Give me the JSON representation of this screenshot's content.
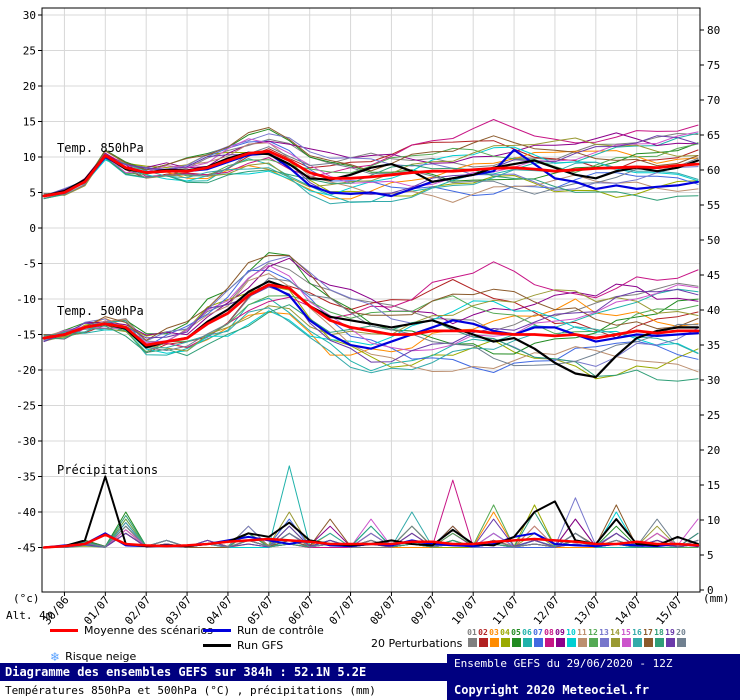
{
  "chart_data": {
    "type": "line",
    "title": "Diagramme des ensembles GEFS sur 384h : 52.1N 5.2E",
    "subtitle": "Températures 850hPa et 500hPa (°C) , précipitations (mm)",
    "x_step_hours": 12,
    "x_max_hours": 384,
    "x_dates": [
      "30/06",
      "01/07",
      "02/07",
      "03/07",
      "04/07",
      "05/07",
      "06/07",
      "07/07",
      "08/07",
      "09/07",
      "10/07",
      "11/07",
      "12/07",
      "13/07",
      "14/07",
      "15/07"
    ],
    "left_axis": {
      "unit": "(°c)",
      "alt_label": "Alt. 4m",
      "ticks": [
        30,
        25,
        20,
        15,
        10,
        5,
        0,
        -5,
        -10,
        -15,
        -20,
        -25,
        -30,
        -35,
        -40,
        -45
      ]
    },
    "right_axis": {
      "unit": "(mm)",
      "ticks": [
        80,
        75,
        70,
        65,
        60,
        55,
        50,
        45,
        40,
        35,
        30,
        25,
        20,
        15,
        10,
        5,
        0
      ]
    },
    "colors": {
      "mean": "#ff0000",
      "control": "#0000dd",
      "gfs": "#000000",
      "grid": "#d8d8d8",
      "frame": "#000000"
    },
    "panels": {
      "t850": {
        "label": "Temp. 850hPa",
        "mean": [
          4.5,
          5.0,
          6.5,
          10.2,
          8.5,
          7.8,
          8.0,
          8.0,
          8.5,
          9.5,
          10.5,
          10.8,
          9.5,
          7.8,
          7.0,
          7.0,
          7.2,
          7.5,
          7.8,
          8.0,
          8.0,
          8.2,
          8.4,
          8.5,
          8.3,
          8.0,
          8.2,
          8.4,
          8.5,
          8.6,
          8.5,
          8.8,
          9.0
        ],
        "control": [
          4.5,
          5.0,
          6.5,
          10.0,
          8.5,
          7.8,
          8.0,
          8.0,
          8.3,
          9.3,
          10.3,
          10.5,
          8.5,
          6.0,
          5.0,
          4.8,
          5.0,
          4.5,
          5.5,
          6.5,
          7.0,
          7.5,
          8.0,
          11.0,
          9.0,
          7.0,
          6.5,
          5.5,
          6.0,
          5.5,
          5.8,
          6.0,
          6.5
        ],
        "gfs": [
          4.5,
          5.2,
          6.8,
          10.2,
          8.3,
          7.8,
          8.2,
          8.1,
          8.6,
          9.8,
          10.6,
          10.4,
          9.0,
          7.0,
          6.8,
          7.5,
          8.5,
          9.0,
          8.0,
          6.5,
          7.0,
          7.5,
          8.5,
          9.0,
          9.5,
          8.5,
          7.5,
          7.0,
          8.0,
          8.5,
          8.0,
          8.5,
          9.5
        ]
      },
      "t500": {
        "label": "Temp. 500hPa",
        "mean": [
          -15.5,
          -15.0,
          -14.0,
          -13.5,
          -14.0,
          -16.5,
          -16.0,
          -15.5,
          -13.5,
          -12.0,
          -9.5,
          -8.0,
          -8.5,
          -11.0,
          -13.0,
          -14.0,
          -14.5,
          -15.0,
          -15.0,
          -14.5,
          -14.5,
          -14.5,
          -14.8,
          -15.0,
          -15.0,
          -15.2,
          -15.0,
          -15.5,
          -15.0,
          -14.5,
          -14.8,
          -14.5,
          -14.5
        ],
        "control": [
          -15.5,
          -15.0,
          -14.0,
          -13.5,
          -14.0,
          -16.5,
          -16.0,
          -15.5,
          -13.5,
          -12.0,
          -9.5,
          -8.0,
          -9.5,
          -13.0,
          -15.0,
          -16.5,
          -17.0,
          -16.0,
          -15.0,
          -14.0,
          -13.0,
          -13.5,
          -14.5,
          -15.0,
          -14.0,
          -14.0,
          -15.0,
          -16.0,
          -15.5,
          -15.0,
          -15.2,
          -15.0,
          -14.8
        ],
        "gfs": [
          -15.5,
          -15.0,
          -14.0,
          -13.5,
          -14.2,
          -16.8,
          -16.0,
          -15.5,
          -13.2,
          -11.5,
          -9.0,
          -7.5,
          -8.5,
          -11.0,
          -12.5,
          -13.0,
          -13.5,
          -14.0,
          -13.5,
          -13.0,
          -14.0,
          -15.0,
          -16.0,
          -15.5,
          -17.0,
          -19.0,
          -20.5,
          -21.0,
          -18.0,
          -15.5,
          -14.5,
          -14.0,
          -14.0
        ]
      },
      "precip": {
        "label": "Précipitations",
        "mean": [
          0,
          0.2,
          0.5,
          1.8,
          0.5,
          0.3,
          0.2,
          0.3,
          0.5,
          0.8,
          1.0,
          1.2,
          1.0,
          0.8,
          0.5,
          0.5,
          0.5,
          0.5,
          0.8,
          0.8,
          0.5,
          0.5,
          0.8,
          1.0,
          1.2,
          1.0,
          0.8,
          0.5,
          0.5,
          0.8,
          0.5,
          0.5,
          0.3
        ],
        "control": [
          0,
          0.3,
          0.5,
          2.0,
          0.3,
          0.2,
          0.2,
          0.2,
          0.5,
          1.0,
          1.5,
          1.0,
          0.5,
          1.0,
          0.3,
          0.2,
          0.5,
          0.3,
          1.0,
          0.5,
          0.3,
          0.2,
          0.5,
          1.5,
          2.0,
          0.5,
          0.3,
          0.2,
          0.5,
          0.3,
          0.2,
          0.5,
          0.2
        ],
        "gfs": [
          0,
          0.2,
          1.0,
          10.0,
          0.5,
          0.2,
          0.3,
          0.2,
          0.5,
          0.8,
          2.0,
          1.5,
          3.5,
          1.0,
          0.5,
          0.3,
          0.5,
          1.0,
          0.5,
          0.3,
          2.5,
          0.5,
          0.3,
          1.5,
          5.0,
          6.5,
          1.0,
          0.5,
          4.0,
          0.5,
          0.3,
          1.5,
          0.5
        ]
      }
    },
    "members": {
      "count": 20,
      "wiggle850": 0.4,
      "wiggle500": 0.5,
      "scale500": 1.5,
      "colors": [
        "#808080",
        "#b22222",
        "#ff8c00",
        "#9aa900",
        "#228b22",
        "#20b2aa",
        "#4169e1",
        "#c71585",
        "#8b008b",
        "#00ced1",
        "#bc8f6f",
        "#55aa55",
        "#7777cc",
        "#999933",
        "#cc55cc",
        "#33aaaa",
        "#8b5a2b",
        "#2f9e77",
        "#6a3aaa",
        "#708090"
      ],
      "offsets850_daily": [
        [
          0,
          0.2,
          0.5,
          0.3,
          1.0,
          1.5,
          2.0,
          2.5,
          3.0,
          2.0,
          1.0,
          0.5,
          1.5,
          2.5,
          3.5,
          4.0,
          4.5
        ],
        [
          0,
          -0.2,
          -0.5,
          -0.3,
          -1.0,
          -0.5,
          0.5,
          1.5,
          2.5,
          3.5,
          4.5,
          3.5,
          2.0,
          1.0,
          0.0,
          1.0,
          2.0
        ],
        [
          0,
          0.1,
          0.3,
          -0.5,
          -1.2,
          -2.0,
          -2.5,
          -3.0,
          -2.0,
          -1.0,
          0.0,
          1.0,
          2.0,
          3.0,
          2.0,
          1.0,
          0.5
        ],
        [
          0,
          -0.1,
          0.4,
          0.8,
          1.5,
          0.5,
          -0.5,
          -1.5,
          -2.5,
          -3.0,
          -2.0,
          -1.0,
          -2.0,
          -3.0,
          -4.0,
          -3.0,
          -2.0
        ],
        [
          0,
          0.3,
          0.6,
          1.0,
          2.0,
          2.5,
          3.0,
          2.0,
          1.0,
          0.0,
          -1.0,
          -2.0,
          -1.0,
          0.0,
          1.0,
          2.0,
          3.0
        ],
        [
          0,
          -0.3,
          -0.6,
          -1.0,
          -1.5,
          -1.0,
          -2.0,
          -2.5,
          -3.5,
          -2.5,
          -1.5,
          -0.5,
          0.5,
          1.5,
          2.5,
          3.5,
          4.0
        ],
        [
          0,
          0.2,
          -0.2,
          0.5,
          1.2,
          2.0,
          1.0,
          0.0,
          -1.0,
          -2.0,
          -3.0,
          -3.5,
          -2.5,
          -1.5,
          -0.5,
          -1.5,
          -2.5
        ],
        [
          0,
          -0.2,
          0.2,
          -0.5,
          -1.0,
          -1.5,
          -1.0,
          0.5,
          2.0,
          3.5,
          5.0,
          6.5,
          5.0,
          3.5,
          4.5,
          5.0,
          5.5
        ],
        [
          0,
          0.1,
          0.5,
          0.8,
          0.5,
          1.0,
          2.5,
          3.5,
          3.0,
          2.0,
          1.0,
          2.0,
          3.0,
          4.0,
          4.5,
          3.5,
          2.5
        ],
        [
          0,
          -0.1,
          -0.4,
          -0.8,
          -1.5,
          -2.5,
          -3.0,
          -2.0,
          -1.0,
          0.5,
          2.0,
          3.0,
          2.0,
          1.0,
          0.0,
          -1.0,
          -2.0
        ],
        [
          0,
          0.2,
          0.4,
          0.2,
          0.8,
          1.2,
          0.5,
          -0.8,
          -2.0,
          -3.0,
          -4.0,
          -3.0,
          -2.0,
          -1.0,
          -2.0,
          -3.0,
          -3.5
        ],
        [
          0,
          -0.2,
          -0.4,
          -0.2,
          -0.8,
          -1.2,
          -0.5,
          0.8,
          1.5,
          2.5,
          3.0,
          2.0,
          1.0,
          0.0,
          1.0,
          2.0,
          2.5
        ],
        [
          0,
          0.3,
          0.2,
          0.6,
          1.5,
          2.2,
          2.8,
          3.2,
          2.2,
          1.2,
          0.2,
          -0.8,
          -1.8,
          -2.8,
          -2.0,
          -1.0,
          0.0
        ],
        [
          0,
          -0.3,
          -0.2,
          -0.6,
          -1.2,
          -1.8,
          -2.2,
          -1.2,
          -0.2,
          0.8,
          1.8,
          2.8,
          3.8,
          4.2,
          3.2,
          2.2,
          1.2
        ],
        [
          0,
          0.1,
          -0.3,
          0.4,
          1.0,
          1.8,
          1.2,
          0.2,
          -0.8,
          -1.8,
          -1.2,
          -0.2,
          0.8,
          1.8,
          2.8,
          3.8,
          4.2
        ],
        [
          0,
          -0.1,
          0.3,
          -0.4,
          -1.0,
          -1.8,
          -2.8,
          -3.2,
          -3.8,
          -3.2,
          -2.2,
          -1.2,
          -0.2,
          0.8,
          0.2,
          -0.8,
          -1.8
        ],
        [
          0,
          0.2,
          0.5,
          1.0,
          1.8,
          2.8,
          3.2,
          2.2,
          1.2,
          2.2,
          3.2,
          4.2,
          3.2,
          2.2,
          1.2,
          0.2,
          1.2
        ],
        [
          0,
          -0.2,
          -0.5,
          -1.0,
          -1.8,
          -2.8,
          -1.8,
          -0.8,
          0.2,
          1.2,
          0.2,
          -0.8,
          -1.8,
          -2.8,
          -3.8,
          -4.2,
          -4.8
        ],
        [
          0,
          0.1,
          0.2,
          0.5,
          1.2,
          0.2,
          -0.8,
          -1.8,
          -2.8,
          -1.8,
          -0.8,
          0.2,
          1.2,
          2.2,
          3.2,
          4.2,
          3.2
        ],
        [
          0,
          -0.1,
          -0.2,
          -0.5,
          -1.2,
          -0.2,
          0.8,
          1.8,
          0.8,
          -0.2,
          -1.2,
          -2.2,
          -3.2,
          -2.2,
          -1.2,
          -0.2,
          0.8
        ]
      ],
      "precip_daily": [
        [
          0,
          0.5,
          2,
          0.5,
          0,
          1,
          3,
          0.5,
          0,
          2,
          0.5,
          0,
          1,
          4,
          0.5,
          0,
          1
        ],
        [
          0,
          1,
          3,
          0.2,
          0.5,
          2,
          0.5,
          0,
          1,
          0.5,
          3,
          1,
          0,
          2,
          0.5,
          1,
          0
        ],
        [
          0,
          0.5,
          4,
          1,
          0,
          0.5,
          1,
          2,
          0.5,
          0,
          1,
          5,
          1,
          0,
          2,
          0.5,
          1
        ],
        [
          0,
          0.2,
          2.5,
          0.5,
          1,
          3,
          1,
          0.5,
          2,
          1,
          0,
          1,
          6,
          1,
          0.5,
          2,
          0.5
        ],
        [
          0,
          1,
          5,
          1,
          0.5,
          0,
          2,
          1,
          0.5,
          3,
          1,
          0.5,
          0,
          1,
          3,
          1,
          0.5
        ],
        [
          0,
          0.5,
          3,
          0.5,
          0,
          1,
          11.5,
          2,
          0.5,
          1,
          0.5,
          2,
          0.5,
          1,
          0,
          0.5,
          1
        ],
        [
          0,
          0.3,
          2,
          1,
          0.5,
          2,
          4,
          1,
          0.5,
          1,
          3,
          0.5,
          0,
          2,
          1,
          0.5,
          0
        ],
        [
          0,
          0.8,
          3.5,
          0.5,
          1,
          2,
          0.5,
          0,
          2,
          1,
          9.5,
          0.5,
          3,
          1,
          0.5,
          0,
          1
        ],
        [
          0,
          0.4,
          2,
          0.5,
          0,
          1,
          2,
          3,
          1,
          0.5,
          2,
          1,
          0.5,
          4,
          1,
          0.5,
          2
        ],
        [
          0,
          0.6,
          3,
          1,
          0.5,
          0,
          1,
          0.5,
          3,
          1,
          0.5,
          2,
          1,
          0.5,
          5,
          1,
          0.5
        ],
        [
          0,
          0.5,
          2.5,
          0.5,
          1,
          2,
          0.5,
          1,
          0.5,
          2,
          1,
          0.5,
          3,
          1,
          0.5,
          2,
          1
        ],
        [
          0,
          0.3,
          4,
          0.5,
          0,
          1,
          3,
          0.5,
          1,
          0.5,
          2,
          6,
          0.5,
          1,
          2,
          0.5,
          0
        ],
        [
          0,
          0.7,
          2,
          1,
          0.5,
          3,
          1,
          0.5,
          2,
          1,
          0.5,
          0,
          1,
          7,
          2,
          0.5,
          1
        ],
        [
          0,
          0.4,
          3,
          0.5,
          0,
          2,
          5,
          1,
          0.5,
          3,
          1,
          0.5,
          2,
          0.5,
          1,
          3,
          0.5
        ],
        [
          0,
          0.6,
          2.5,
          1,
          0.5,
          1,
          2,
          0.5,
          4,
          1,
          0.5,
          2,
          0.5,
          1,
          0.5,
          2,
          4
        ],
        [
          0,
          0.3,
          3.5,
          0.5,
          1,
          0.5,
          2,
          1,
          0.5,
          5,
          1,
          0.5,
          1,
          2,
          0.5,
          1,
          0.5
        ],
        [
          0,
          0.5,
          2,
          0.5,
          0,
          1,
          1,
          4,
          1,
          0.5,
          3,
          1,
          0.5,
          2,
          6,
          1,
          0.5
        ],
        [
          0,
          0.8,
          4.5,
          1,
          0.5,
          2,
          0.5,
          1,
          3,
          0.5,
          1,
          0.5,
          5,
          1,
          0.5,
          0,
          2
        ],
        [
          0,
          0.4,
          2,
          0.5,
          1,
          0.5,
          3,
          1,
          0.5,
          2,
          0.5,
          4,
          1,
          0.5,
          2,
          1,
          0.5
        ],
        [
          0,
          0.6,
          3,
          1,
          0.5,
          1,
          2,
          0.5,
          1,
          3,
          0.5,
          1,
          0.5,
          2,
          1,
          4,
          1
        ]
      ]
    }
  },
  "legend": {
    "mean_label": "Moyenne des scénarios",
    "control_label": "Run de contrôle",
    "gfs_label": "Run GFS",
    "perturbations_label": "20 Perturbations",
    "snow_label": "Risque neige",
    "snowflake": "❄",
    "numbers": [
      "01",
      "02",
      "03",
      "04",
      "05",
      "06",
      "07",
      "08",
      "09",
      "10",
      "11",
      "12",
      "13",
      "14",
      "15",
      "16",
      "17",
      "18",
      "19",
      "20"
    ]
  },
  "footer": {
    "title": "Diagramme des ensembles GEFS sur 384h : 52.1N 5.2E",
    "subtitle": "Températures 850hPa et 500hPa (°C) , précipitations (mm)",
    "run": "Ensemble GEFS du 29/06/2020 - 12Z",
    "copyright": "Copyright 2020 Meteociel.fr"
  }
}
